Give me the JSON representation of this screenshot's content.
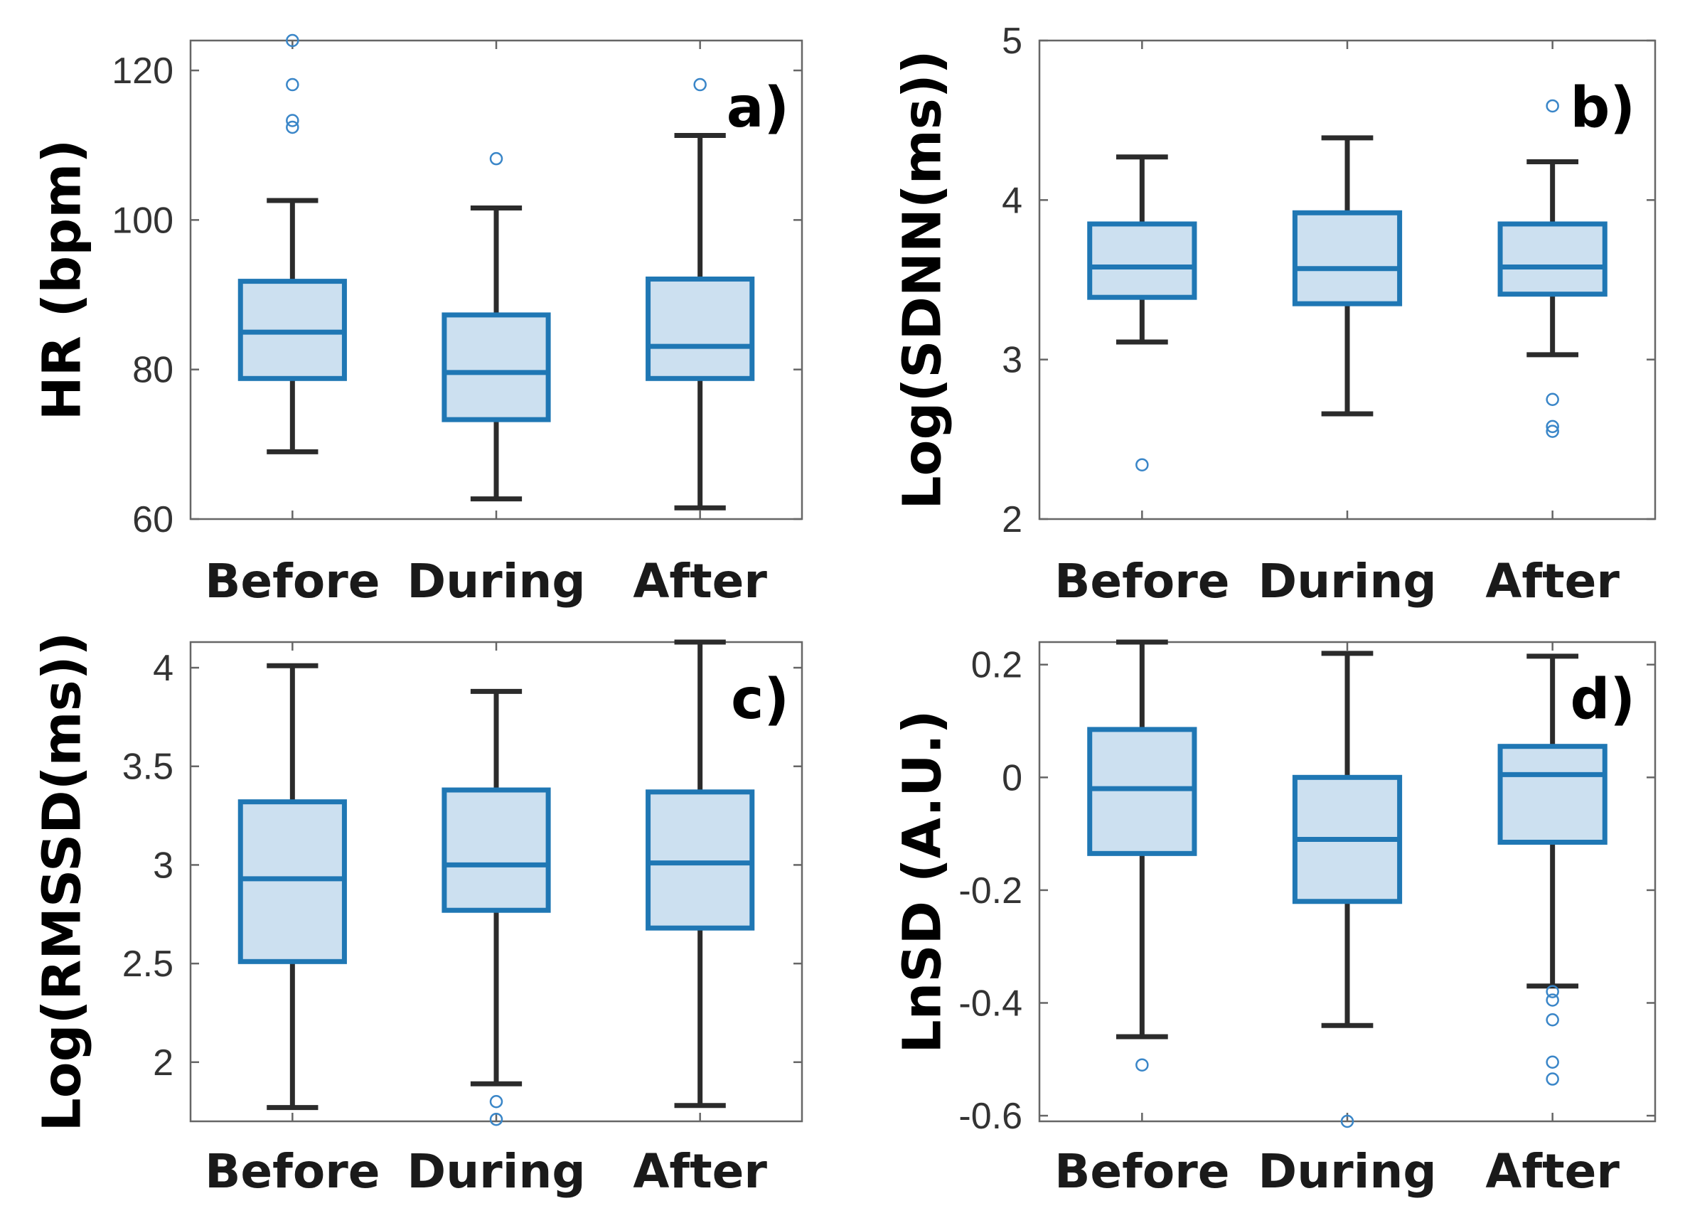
{
  "colors": {
    "box_stroke": "#1f77b4",
    "box_fill": "#cce0f0",
    "whisker": "#2b2b2b",
    "axis": "#666666",
    "outlier": "#3a86c8"
  },
  "chart_data": [
    {
      "type": "box",
      "panel_label": "a)",
      "ylabel": "HR (bpm)",
      "ylim": [
        60,
        124
      ],
      "yticks": [
        60,
        80,
        100,
        120
      ],
      "ytick_labels": [
        "60",
        "80",
        "100",
        "120"
      ],
      "categories": [
        "Before",
        "During",
        "After"
      ],
      "boxes": [
        {
          "whisker_low": 69,
          "q1": 78.8,
          "median": 85,
          "q3": 91.8,
          "whisker_high": 102.6,
          "outliers": [
            112.4,
            113.3,
            118.1,
            124
          ]
        },
        {
          "whisker_low": 62.7,
          "q1": 73.3,
          "median": 79.6,
          "q3": 87.3,
          "whisker_high": 101.6,
          "outliers": [
            108.2
          ]
        },
        {
          "whisker_low": 61.5,
          "q1": 78.8,
          "median": 83.1,
          "q3": 92.1,
          "whisker_high": 111.3,
          "outliers": [
            118.1
          ]
        }
      ]
    },
    {
      "type": "box",
      "panel_label": "b)",
      "ylabel": "Log(SDNN(ms))",
      "ylim": [
        2,
        5
      ],
      "yticks": [
        2,
        3,
        4,
        5
      ],
      "ytick_labels": [
        "2",
        "3",
        "4",
        "5"
      ],
      "categories": [
        "Before",
        "During",
        "After"
      ],
      "boxes": [
        {
          "whisker_low": 3.11,
          "q1": 3.39,
          "median": 3.58,
          "q3": 3.85,
          "whisker_high": 4.27,
          "outliers": [
            2.34
          ]
        },
        {
          "whisker_low": 2.66,
          "q1": 3.35,
          "median": 3.57,
          "q3": 3.92,
          "whisker_high": 4.39,
          "outliers": []
        },
        {
          "whisker_low": 3.03,
          "q1": 3.41,
          "median": 3.58,
          "q3": 3.85,
          "whisker_high": 4.24,
          "outliers": [
            2.55,
            2.58,
            2.75,
            4.59
          ]
        }
      ]
    },
    {
      "type": "box",
      "panel_label": "c)",
      "ylabel": "Log(RMSSD(ms))",
      "ylim": [
        1.7,
        4.13
      ],
      "yticks": [
        2,
        2.5,
        3,
        3.5,
        4
      ],
      "ytick_labels": [
        "2",
        "2.5",
        "3",
        "3.5",
        "4"
      ],
      "categories": [
        "Before",
        "During",
        "After"
      ],
      "boxes": [
        {
          "whisker_low": 1.77,
          "q1": 2.51,
          "median": 2.93,
          "q3": 3.32,
          "whisker_high": 4.01,
          "outliers": []
        },
        {
          "whisker_low": 1.89,
          "q1": 2.77,
          "median": 3.0,
          "q3": 3.38,
          "whisker_high": 3.88,
          "outliers": [
            1.71,
            1.8
          ]
        },
        {
          "whisker_low": 1.78,
          "q1": 2.68,
          "median": 3.01,
          "q3": 3.37,
          "whisker_high": 4.13,
          "outliers": []
        }
      ]
    },
    {
      "type": "box",
      "panel_label": "d)",
      "ylabel": "LnSD (A.U.)",
      "ylim": [
        -0.61,
        0.24
      ],
      "yticks": [
        -0.6,
        -0.4,
        -0.2,
        0,
        0.2
      ],
      "ytick_labels": [
        "-0.6",
        "-0.4",
        "-0.2",
        "0",
        "0.2"
      ],
      "categories": [
        "Before",
        "During",
        "After"
      ],
      "boxes": [
        {
          "whisker_low": -0.46,
          "q1": -0.135,
          "median": -0.02,
          "q3": 0.085,
          "whisker_high": 0.24,
          "outliers": [
            -0.51
          ]
        },
        {
          "whisker_low": -0.44,
          "q1": -0.22,
          "median": -0.11,
          "q3": 0.0,
          "whisker_high": 0.22,
          "outliers": [
            -0.61
          ]
        },
        {
          "whisker_low": -0.37,
          "q1": -0.115,
          "median": 0.005,
          "q3": 0.055,
          "whisker_high": 0.215,
          "outliers": [
            -0.535,
            -0.505,
            -0.43,
            -0.395,
            -0.38
          ]
        }
      ]
    }
  ]
}
